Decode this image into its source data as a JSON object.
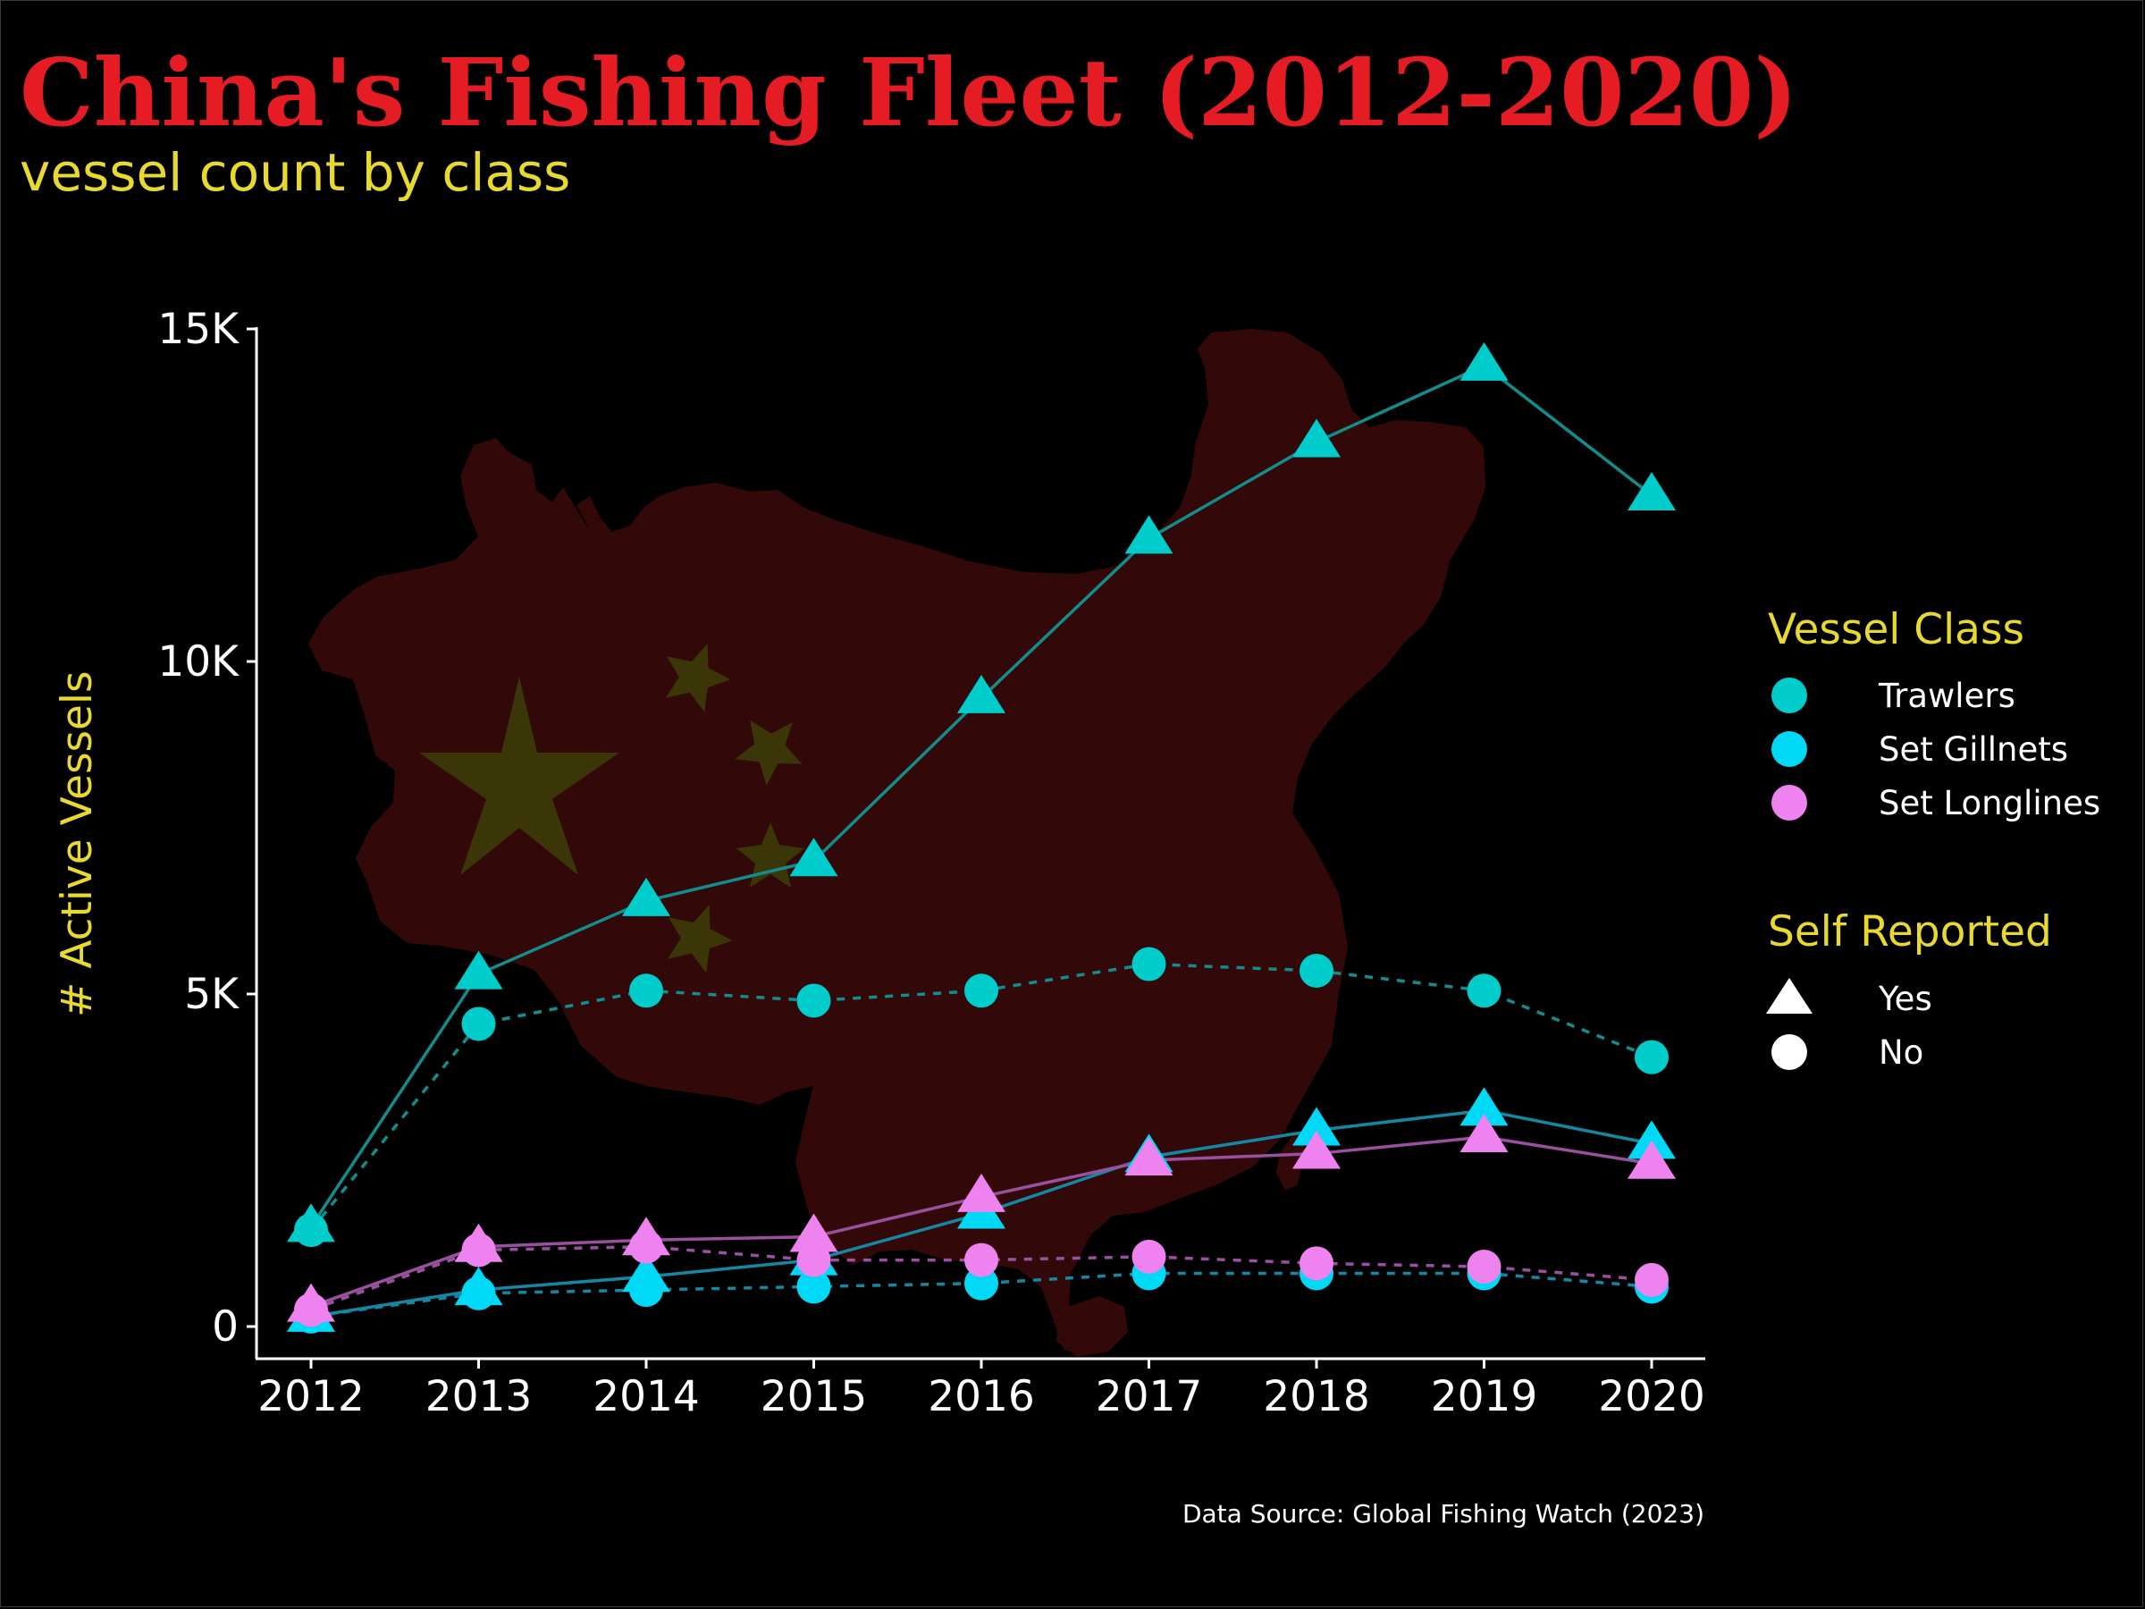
{
  "chart_data": {
    "type": "line",
    "title": "China's Fishing Fleet (2012-2020)",
    "subtitle": "vessel count by class",
    "ylabel": "# Active Vessels",
    "xlabel": "",
    "caption": "Data Source: Global Fishing Watch (2023)",
    "x": [
      2012,
      2013,
      2014,
      2015,
      2016,
      2017,
      2018,
      2019,
      2020
    ],
    "ylim": [
      0,
      15000
    ],
    "y_ticks": [
      {
        "value": 0,
        "label": "0"
      },
      {
        "value": 5000,
        "label": "5K"
      },
      {
        "value": 10000,
        "label": "10K"
      },
      {
        "value": 15000,
        "label": "15K"
      }
    ],
    "x_ticks": [
      "2012",
      "2013",
      "2014",
      "2015",
      "2016",
      "2017",
      "2018",
      "2019",
      "2020"
    ],
    "grid": false,
    "legend_placement": "right",
    "series": [
      {
        "class": "Trawlers",
        "self_reported": "Yes",
        "values": [
          1500,
          5300,
          6400,
          7000,
          9450,
          11850,
          13300,
          14450,
          12500
        ]
      },
      {
        "class": "Trawlers",
        "self_reported": "No",
        "values": [
          1450,
          4550,
          5050,
          4900,
          5050,
          5450,
          5350,
          5050,
          4050
        ]
      },
      {
        "class": "Set Gillnets",
        "self_reported": "Yes",
        "values": [
          150,
          550,
          750,
          1000,
          1700,
          2550,
          2950,
          3250,
          2750
        ]
      },
      {
        "class": "Set Gillnets",
        "self_reported": "No",
        "values": [
          150,
          500,
          550,
          600,
          650,
          800,
          800,
          800,
          600
        ]
      },
      {
        "class": "Set Longlines",
        "self_reported": "Yes",
        "values": [
          300,
          1200,
          1300,
          1350,
          1950,
          2500,
          2600,
          2850,
          2450
        ]
      },
      {
        "class": "Set Longlines",
        "self_reported": "No",
        "values": [
          250,
          1150,
          1200,
          1000,
          1000,
          1050,
          950,
          900,
          700
        ]
      }
    ],
    "legend": {
      "vessel_class": {
        "title": "Vessel Class",
        "items": [
          {
            "label": "Trawlers",
            "color": "#00cccc"
          },
          {
            "label": "Set Gillnets",
            "color": "#00d9f5"
          },
          {
            "label": "Set Longlines",
            "color": "#ee82ee"
          }
        ]
      },
      "self_reported": {
        "title": "Self Reported",
        "items": [
          {
            "label": "Yes",
            "shape": "triangle",
            "linetype": "solid"
          },
          {
            "label": "No",
            "shape": "circle",
            "linetype": "dashed"
          }
        ]
      }
    },
    "colors": {
      "background": "#000000",
      "title": "#e61c24",
      "accent_text": "#e8d930",
      "text": "#ffffff",
      "map_fill": "#330808",
      "star_fill": "#3a3608"
    },
    "line_colors": {
      "Trawlers": "#138c8c",
      "Set Gillnets": "#1487a3",
      "Set Longlines": "#99509f"
    },
    "background_image": "map-of-china-with-flag-stars"
  }
}
